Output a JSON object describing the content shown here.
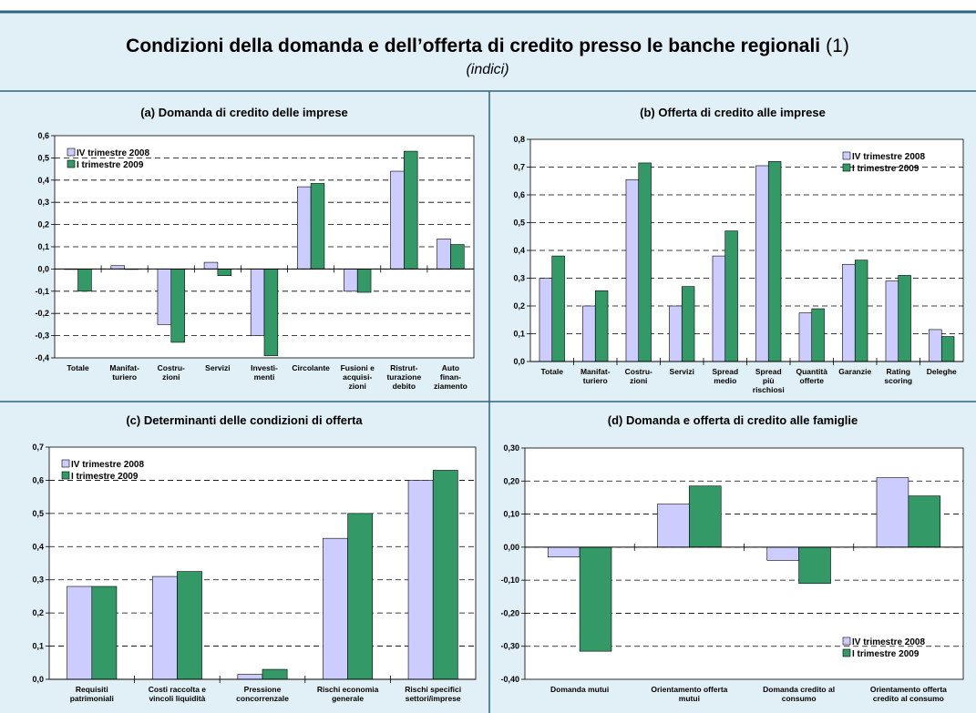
{
  "header": {
    "title": "Condizioni della domanda e dell’offerta di credito presso le banche regionali",
    "note": "(1)",
    "subtitle": "(indici)"
  },
  "chart_data": [
    {
      "type": "bar",
      "title": "(a) Domanda di credito delle imprese",
      "categories": [
        "Totale",
        "Manifat-\nturiero",
        "Costru-\nzioni",
        "Servizi",
        "Investi-\nmenti",
        "Circolante",
        "Fusioni e\nacquisi-\nzioni",
        "Ristrut-\nturazione\ndebito",
        "Auto\nfinan-\nziamento"
      ],
      "series": [
        {
          "name": "IV trimestre 2008",
          "color": "#ccccff",
          "values": [
            0,
            0.015,
            -0.25,
            0.03,
            -0.3,
            0.37,
            -0.1,
            0.44,
            0.135
          ]
        },
        {
          "name": "I trimestre 2009",
          "color": "#339966",
          "values": [
            -0.1,
            0,
            -0.33,
            -0.03,
            -0.39,
            0.385,
            -0.105,
            0.53,
            0.11
          ]
        }
      ],
      "ylim": [
        -0.4,
        0.6
      ],
      "yticks": [
        {
          "value": -0.4,
          "label": "-0,4"
        },
        {
          "value": -0.3,
          "label": "-0,3"
        },
        {
          "value": -0.2,
          "label": "-0,2"
        },
        {
          "value": -0.1,
          "label": "-0,1"
        },
        {
          "value": 0,
          "label": "0,0"
        },
        {
          "value": 0.1,
          "label": "0,1"
        },
        {
          "value": 0.2,
          "label": "0,2"
        },
        {
          "value": 0.3,
          "label": "0,3"
        },
        {
          "value": 0.4,
          "label": "0,4"
        },
        {
          "value": 0.5,
          "label": "0,5"
        },
        {
          "value": 0.6,
          "label": "0,6"
        }
      ],
      "grid": true,
      "legend": "upper left"
    },
    {
      "type": "bar",
      "title": "(b) Offerta di credito alle imprese",
      "categories": [
        "Totale",
        "Manifat-\nturiero",
        "Costru-\nzioni",
        "Servizi",
        "Spread\nmedio",
        "Spread\npiù\nrischiosi",
        "Quantità\nofferte",
        "Garanzie",
        "Rating\nscoring",
        "Deleghe"
      ],
      "series": [
        {
          "name": "IV trimestre 2008",
          "color": "#ccccff",
          "values": [
            0.3,
            0.2,
            0.655,
            0.2,
            0.38,
            0.705,
            0.175,
            0.35,
            0.29,
            0.115
          ]
        },
        {
          "name": "I trimestre 2009",
          "color": "#339966",
          "values": [
            0.38,
            0.255,
            0.715,
            0.27,
            0.47,
            0.72,
            0.19,
            0.365,
            0.31,
            0.09
          ]
        }
      ],
      "ylim": [
        0,
        0.8
      ],
      "yticks": [
        {
          "value": 0,
          "label": "0,0"
        },
        {
          "value": 0.1,
          "label": "0,1"
        },
        {
          "value": 0.2,
          "label": "0,2"
        },
        {
          "value": 0.3,
          "label": "0,3"
        },
        {
          "value": 0.4,
          "label": "0,4"
        },
        {
          "value": 0.5,
          "label": "0,5"
        },
        {
          "value": 0.6,
          "label": "0,6"
        },
        {
          "value": 0.7,
          "label": "0,7"
        },
        {
          "value": 0.8,
          "label": "0,8"
        }
      ],
      "grid": true,
      "legend": "upper right"
    },
    {
      "type": "bar",
      "title": "(c) Determinanti delle condizioni di offerta",
      "categories": [
        "Requisiti\npatrimoniali",
        "Costi raccolta e\nvincoli liquidità",
        "Pressione\nconcorrenzale",
        "Rischi economia\ngenerale",
        "Rischi specifici\nsettori/imprese"
      ],
      "series": [
        {
          "name": "IV trimestre 2008",
          "color": "#ccccff",
          "values": [
            0.28,
            0.31,
            0.015,
            0.425,
            0.6
          ]
        },
        {
          "name": "I trimestre 2009",
          "color": "#339966",
          "values": [
            0.28,
            0.325,
            0.03,
            0.5,
            0.63
          ]
        }
      ],
      "ylim": [
        0,
        0.7
      ],
      "yticks": [
        {
          "value": 0,
          "label": "0,0"
        },
        {
          "value": 0.1,
          "label": "0,1"
        },
        {
          "value": 0.2,
          "label": "0,2"
        },
        {
          "value": 0.3,
          "label": "0,3"
        },
        {
          "value": 0.4,
          "label": "0,4"
        },
        {
          "value": 0.5,
          "label": "0,5"
        },
        {
          "value": 0.6,
          "label": "0,6"
        },
        {
          "value": 0.7,
          "label": "0,7"
        }
      ],
      "grid": true,
      "legend": "upper left"
    },
    {
      "type": "bar",
      "title": "(d) Domanda e offerta di credito alle famiglie",
      "categories": [
        "Domanda mutui",
        "Orientamento offerta\nmutui",
        "Domanda credito al\nconsumo",
        "Orientamento offerta\ncredito al consumo"
      ],
      "series": [
        {
          "name": "IV trimestre 2008",
          "color": "#ccccff",
          "values": [
            -0.03,
            0.13,
            -0.04,
            0.21
          ]
        },
        {
          "name": "I trimestre 2009",
          "color": "#339966",
          "values": [
            -0.315,
            0.185,
            -0.11,
            0.155
          ]
        }
      ],
      "ylim": [
        -0.4,
        0.3
      ],
      "yticks": [
        {
          "value": -0.4,
          "label": "-0,40"
        },
        {
          "value": -0.3,
          "label": "-0,30"
        },
        {
          "value": -0.2,
          "label": "-0,20"
        },
        {
          "value": -0.1,
          "label": "-0,10"
        },
        {
          "value": 0,
          "label": "0,00"
        },
        {
          "value": 0.1,
          "label": "0,10"
        },
        {
          "value": 0.2,
          "label": "0,20"
        },
        {
          "value": 0.3,
          "label": "0,30"
        }
      ],
      "grid": true,
      "legend": "lower right"
    }
  ]
}
